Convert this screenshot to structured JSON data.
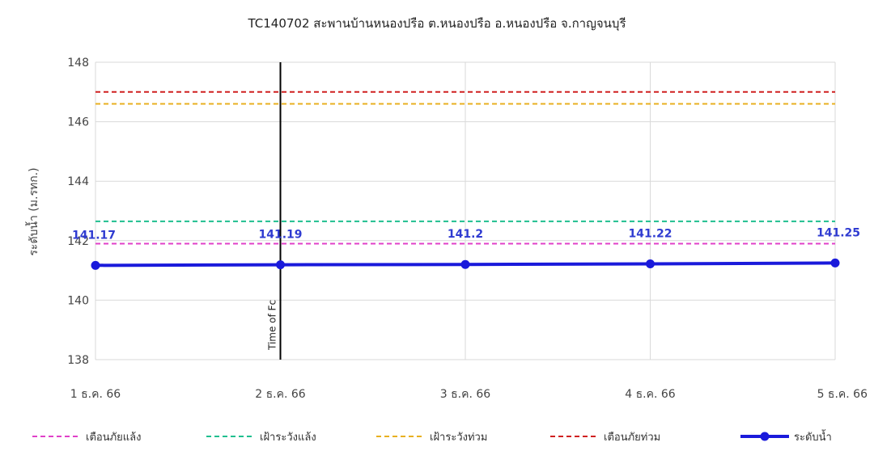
{
  "chart_data": {
    "type": "line",
    "title": "TC140702 สะพานบ้านหนองปรือ ต.หนองปรือ อ.หนองปรือ จ.กาญจนบุรี",
    "xlabel": "",
    "ylabel": "ระดับน้ำ (ม.รทก.)",
    "categories": [
      "1 ธ.ค. 66",
      "2 ธ.ค. 66",
      "3 ธ.ค. 66",
      "4 ธ.ค. 66",
      "5 ธ.ค. 66"
    ],
    "ylim": [
      138,
      148
    ],
    "yticks": [
      138,
      140,
      142,
      144,
      146,
      148
    ],
    "grid": true,
    "legend_position": "bottom",
    "series": [
      {
        "name": "ระดับน้ำ",
        "values": [
          141.17,
          141.19,
          141.2,
          141.22,
          141.25
        ],
        "labels": [
          "141.17",
          "141.19",
          "141.2",
          "141.22",
          "141.25"
        ],
        "color": "#1a1adb",
        "style": "solid-markers"
      }
    ],
    "reference_lines": [
      {
        "name": "เตือนภัยแล้ง",
        "value": 141.9,
        "color": "#e040c8"
      },
      {
        "name": "เฝ้าระวังแล้ง",
        "value": 142.65,
        "color": "#1fbf8f"
      },
      {
        "name": "เฝ้าระวังท่วม",
        "value": 146.6,
        "color": "#e8b020"
      },
      {
        "name": "เตือนภัยท่วม",
        "value": 147.0,
        "color": "#d02020"
      }
    ],
    "marker_line": {
      "label": "Time of Fc",
      "category_index": 1,
      "color": "#000000"
    }
  }
}
